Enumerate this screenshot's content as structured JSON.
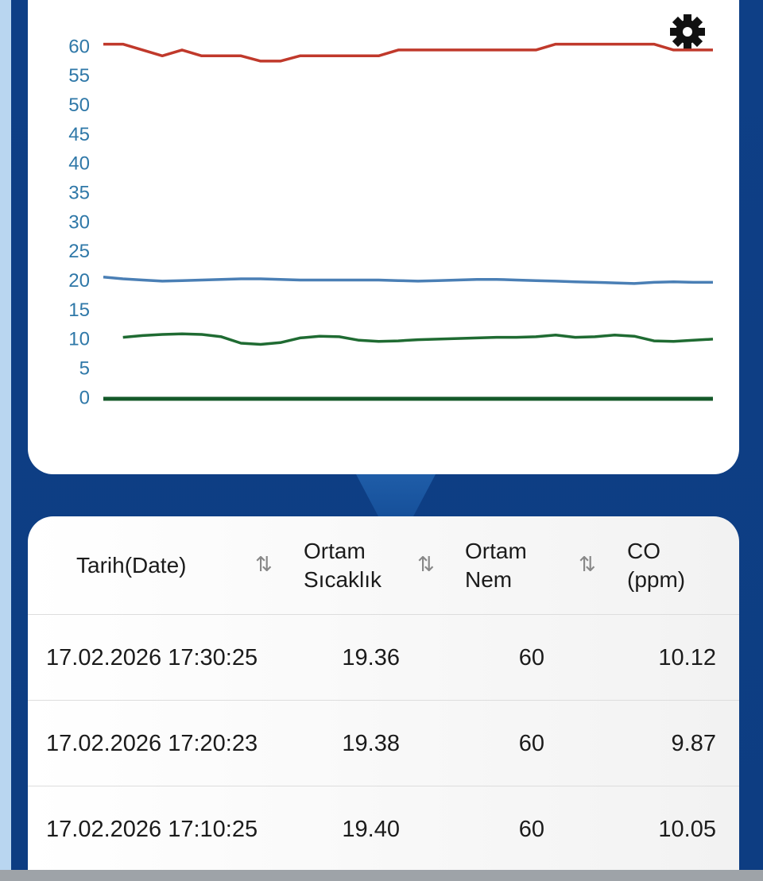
{
  "chart_data": {
    "type": "line",
    "ylim": [
      0,
      60
    ],
    "yticks": [
      0,
      5,
      10,
      15,
      20,
      25,
      30,
      35,
      40,
      45,
      50,
      55,
      60
    ],
    "series": [
      {
        "color": "#c0392b",
        "values": [
          60.6,
          60.6,
          59.6,
          58.6,
          59.6,
          58.6,
          58.6,
          58.6,
          57.7,
          57.7,
          58.6,
          58.6,
          58.6,
          58.6,
          58.6,
          59.6,
          59.6,
          59.6,
          59.6,
          59.6,
          59.6,
          59.6,
          59.6,
          60.6,
          60.6,
          60.6,
          60.6,
          60.6,
          60.6,
          59.6,
          59.6,
          59.6
        ]
      },
      {
        "color": "#4a7fb5",
        "values": [
          20.8,
          20.5,
          20.3,
          20.1,
          20.2,
          20.3,
          20.4,
          20.5,
          20.5,
          20.4,
          20.3,
          20.3,
          20.3,
          20.3,
          20.3,
          20.2,
          20.1,
          20.2,
          20.3,
          20.4,
          20.4,
          20.3,
          20.2,
          20.1,
          20.0,
          19.9,
          19.8,
          19.7,
          19.9,
          20.0,
          19.9,
          19.9
        ]
      },
      {
        "color": "#1f6b32",
        "values": [
          null,
          10.5,
          10.8,
          11.0,
          11.1,
          11.0,
          10.6,
          9.5,
          9.3,
          9.6,
          10.4,
          10.7,
          10.6,
          10.0,
          9.8,
          9.9,
          10.1,
          10.2,
          10.3,
          10.4,
          10.5,
          10.5,
          10.6,
          10.9,
          10.5,
          10.6,
          10.9,
          10.7,
          9.9,
          9.8,
          10.0,
          10.2
        ]
      },
      {
        "color": "#14592a",
        "values": [
          0,
          0,
          0,
          0,
          0,
          0,
          0,
          0,
          0,
          0,
          0,
          0,
          0,
          0,
          0,
          0,
          0,
          0,
          0,
          0,
          0,
          0,
          0,
          0,
          0,
          0,
          0,
          0,
          0,
          0,
          0,
          0
        ]
      }
    ]
  },
  "table": {
    "headers": [
      "Tarih(Date)",
      "Ortam Sıcaklık",
      "Ortam Nem",
      "CO (ppm)"
    ],
    "rows": [
      [
        "17.02.2026 17:30:25",
        "19.36",
        "60",
        "10.12"
      ],
      [
        "17.02.2026 17:20:23",
        "19.38",
        "60",
        "9.87"
      ],
      [
        "17.02.2026 17:10:25",
        "19.40",
        "60",
        "10.05"
      ]
    ]
  }
}
